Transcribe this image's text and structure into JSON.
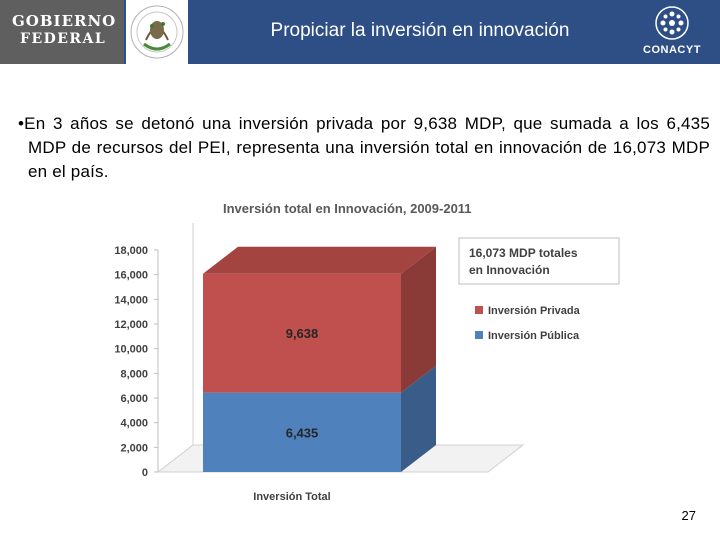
{
  "header": {
    "gov_logo_line1": "GOBIERNO",
    "gov_logo_line2": "FEDERAL",
    "title": "Propiciar la inversión en innovación",
    "conacyt_logo_text": "CONACYT"
  },
  "bullet": {
    "marker": "•",
    "text": "En 3 años se detonó una inversión privada por 9,638 MDP, que sumada a los 6,435 MDP de recursos del PEI, representa una inversión total en innovación de 16,073 MDP en el país."
  },
  "chart_data": {
    "type": "bar",
    "stacked": true,
    "three_d": true,
    "title": "Inversión total en Innovación, 2009-2011",
    "categories": [
      "Inversión Total"
    ],
    "series": [
      {
        "name": "Inversión Pública",
        "values": [
          6435
        ],
        "label": "6,435",
        "color": "#4f81bd"
      },
      {
        "name": "Inversión Privada",
        "values": [
          9638
        ],
        "label": "9,638",
        "color": "#c0504d"
      }
    ],
    "ylim": [
      0,
      18000
    ],
    "yticks": [
      0,
      2000,
      4000,
      6000,
      8000,
      10000,
      12000,
      14000,
      16000,
      18000
    ],
    "ytick_labels": [
      "0",
      "2,000",
      "4,000",
      "6,000",
      "8,000",
      "10,000",
      "12,000",
      "14,000",
      "16,000",
      "18,000"
    ],
    "legend_position": "right",
    "legend_order": [
      "Inversión Privada",
      "Inversión Pública"
    ],
    "callout": "16,073 MDP totales en Innovación",
    "grid": false
  },
  "page_number": "27"
}
